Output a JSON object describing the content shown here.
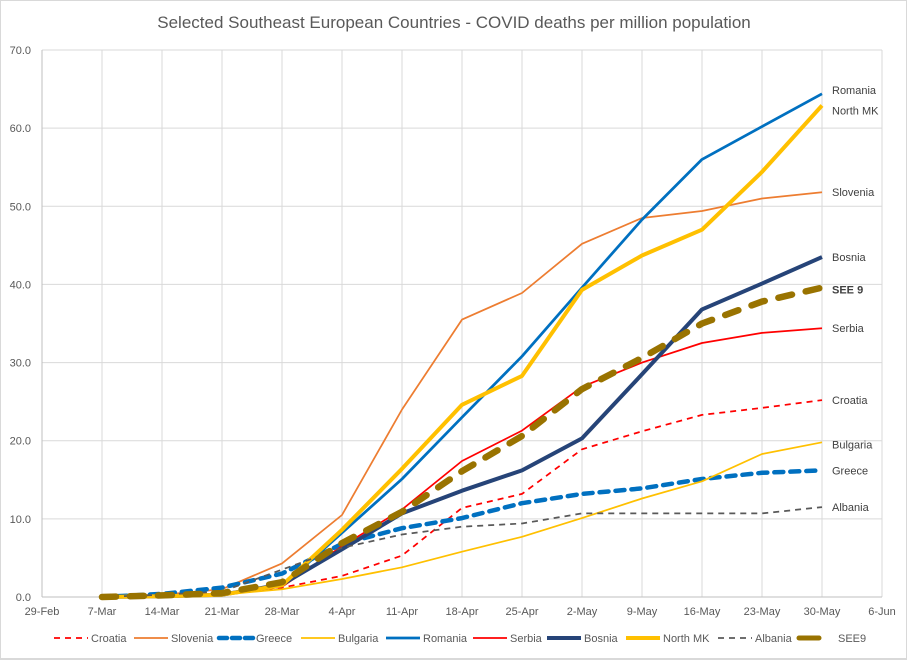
{
  "chart_data": {
    "type": "line",
    "title": "Selected Southeast European Countries - COVID deaths per million population",
    "xlabel": "",
    "ylabel": "",
    "x_tick_labels": [
      "29-Feb",
      "7-Mar",
      "14-Mar",
      "21-Mar",
      "28-Mar",
      "4-Apr",
      "11-Apr",
      "18-Apr",
      "25-Apr",
      "2-May",
      "9-May",
      "16-May",
      "23-May",
      "30-May",
      "6-Jun"
    ],
    "y_tick_labels": [
      "0.0",
      "10.0",
      "20.0",
      "30.0",
      "40.0",
      "50.0",
      "60.0",
      "70.0"
    ],
    "ylim": [
      0,
      70
    ],
    "xlim_weeks": [
      0,
      14
    ],
    "grid": "both",
    "legend_position": "bottom",
    "x": [
      "7-Mar",
      "14-Mar",
      "21-Mar",
      "28-Mar",
      "4-Apr",
      "11-Apr",
      "18-Apr",
      "25-Apr",
      "2-May",
      "9-May",
      "16-May",
      "23-May",
      "30-May"
    ],
    "series": [
      {
        "name": "Croatia",
        "end_label": "Croatia",
        "color": "#FF0000",
        "style": "dashed-thin",
        "values": [
          0.0,
          0.3,
          0.5,
          1.2,
          2.7,
          5.3,
          11.4,
          13.2,
          18.9,
          21.2,
          23.3,
          24.2,
          25.2
        ]
      },
      {
        "name": "Slovenia",
        "end_label": "Slovenia",
        "color": "#ED7D31",
        "style": "solid-thin",
        "values": [
          0.0,
          0.3,
          1.0,
          4.3,
          10.5,
          24.0,
          35.5,
          38.9,
          45.2,
          48.5,
          49.4,
          51.0,
          51.8
        ]
      },
      {
        "name": "Greece",
        "end_label": "Greece",
        "color": "#0070C0",
        "style": "dashed-thick",
        "values": [
          0.0,
          0.4,
          1.2,
          3.0,
          6.8,
          8.8,
          10.1,
          12.0,
          13.2,
          13.9,
          15.1,
          15.9,
          16.2
        ]
      },
      {
        "name": "Bulgaria",
        "end_label": "Bulgaria",
        "color": "#FFC000",
        "style": "solid-thin",
        "values": [
          0.0,
          0.1,
          0.3,
          1.0,
          2.3,
          3.8,
          5.8,
          7.7,
          10.1,
          12.6,
          14.8,
          18.3,
          19.8
        ]
      },
      {
        "name": "Romania",
        "end_label": "Romania",
        "color": "#0070C0",
        "style": "solid-medium",
        "values": [
          0.0,
          0.1,
          0.3,
          1.4,
          8.2,
          15.1,
          23.0,
          30.8,
          39.6,
          48.3,
          56.0,
          60.2,
          64.4
        ]
      },
      {
        "name": "Serbia",
        "end_label": "Serbia",
        "color": "#FF0000",
        "style": "solid-thin",
        "values": [
          0.0,
          0.1,
          0.3,
          1.3,
          6.5,
          11.2,
          17.4,
          21.3,
          26.9,
          30.0,
          32.5,
          33.8,
          34.4
        ]
      },
      {
        "name": "Bosnia",
        "end_label": "Bosnia",
        "color": "#264478",
        "style": "solid-thick",
        "values": [
          0.0,
          0.1,
          0.3,
          1.6,
          6.1,
          10.7,
          13.6,
          16.2,
          20.3,
          28.5,
          36.8,
          40.1,
          43.5
        ]
      },
      {
        "name": "North MK",
        "end_label": "North MK",
        "color": "#FFC000",
        "style": "solid-thick",
        "values": [
          0.0,
          0.1,
          0.3,
          1.5,
          8.6,
          16.4,
          24.6,
          28.3,
          39.3,
          43.7,
          47.0,
          54.4,
          62.9
        ]
      },
      {
        "name": "Albania",
        "end_label": "Albania",
        "color": "#595959",
        "style": "dashed-thin",
        "values": [
          0.0,
          0.3,
          0.7,
          3.5,
          6.3,
          8.0,
          9.0,
          9.4,
          10.7,
          10.7,
          10.7,
          10.7,
          11.5
        ]
      },
      {
        "name": "SEE9",
        "end_label": "SEE 9",
        "color": "#997300",
        "style": "dashed-heavy",
        "values": [
          0.0,
          0.2,
          0.5,
          1.9,
          6.9,
          10.9,
          16.1,
          20.6,
          26.6,
          30.6,
          35.0,
          37.8,
          39.6
        ]
      }
    ]
  }
}
